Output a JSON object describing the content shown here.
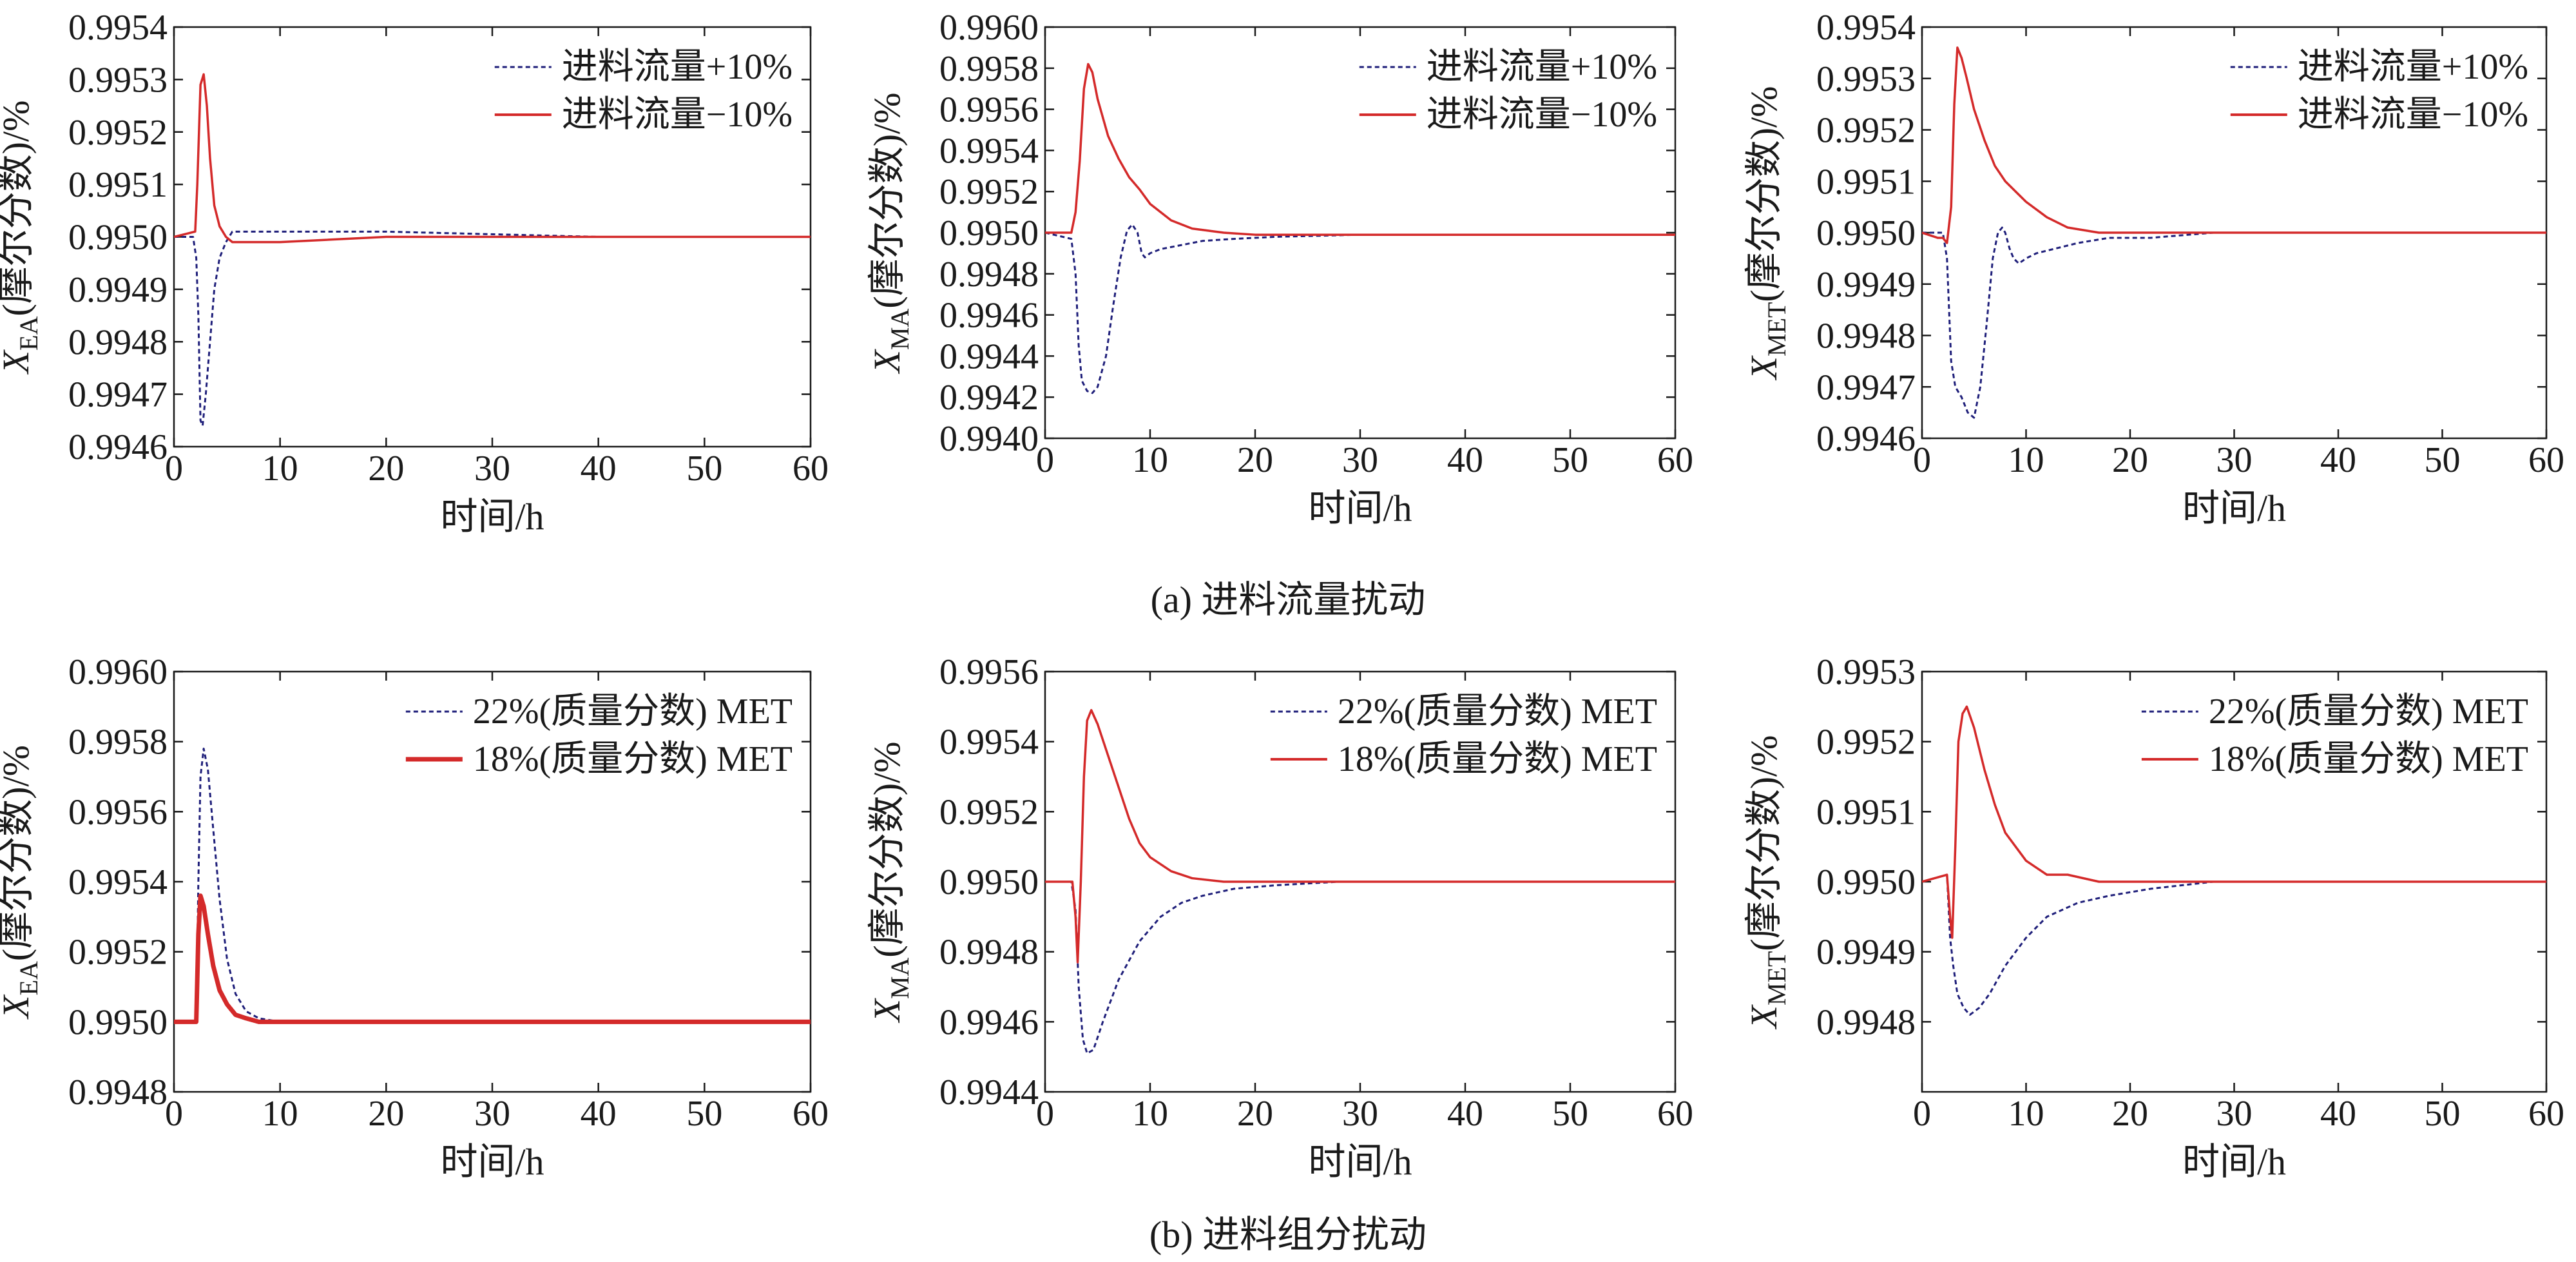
{
  "figure": {
    "captions": [
      "(a) 进料流量扰动",
      "(b) 进料组分扰动"
    ]
  },
  "chart_data": [
    {
      "type": "line",
      "row": "a",
      "ylabel": {
        "prefix": "X",
        "sub": "EA",
        "suffix": "(摩尔分数)/%"
      },
      "xlabel": "时间/h",
      "xlim": [
        0,
        60
      ],
      "ylim": [
        0.9946,
        0.9954
      ],
      "xticks": [
        0,
        10,
        20,
        30,
        40,
        50,
        60
      ],
      "yticks": [
        "0.9946",
        "0.9947",
        "0.9948",
        "0.9949",
        "0.9950",
        "0.9951",
        "0.9952",
        "0.9953",
        "0.9954"
      ],
      "grid": false,
      "legend_position": "top-right",
      "series": [
        {
          "name": "进料流量+10%",
          "style": "dotted",
          "color": "#1f1f7a",
          "x": [
            0,
            1.8,
            2.1,
            2.3,
            2.5,
            2.7,
            3.0,
            3.4,
            3.8,
            4.3,
            4.9,
            5.5,
            7,
            10,
            20,
            40,
            60
          ],
          "y": [
            0.995,
            0.995,
            0.99496,
            0.99485,
            0.99465,
            0.99464,
            0.9947,
            0.9948,
            0.9949,
            0.99496,
            0.99499,
            0.99501,
            0.99501,
            0.99501,
            0.99501,
            0.995,
            0.995
          ]
        },
        {
          "name": "进料流量−10%",
          "style": "solid",
          "color": "#d42a2a",
          "x": [
            0,
            2.0,
            2.2,
            2.5,
            2.8,
            3.1,
            3.4,
            3.8,
            4.3,
            4.9,
            5.5,
            7,
            10,
            20,
            40,
            60
          ],
          "y": [
            0.995,
            0.99501,
            0.9951,
            0.99529,
            0.99531,
            0.99525,
            0.99515,
            0.99506,
            0.99502,
            0.995,
            0.99499,
            0.99499,
            0.99499,
            0.995,
            0.995,
            0.995
          ]
        }
      ]
    },
    {
      "type": "line",
      "row": "a",
      "ylabel": {
        "prefix": "X",
        "sub": "MA",
        "suffix": "(摩尔分数)/%"
      },
      "xlabel": "时间/h",
      "xlim": [
        0,
        60
      ],
      "ylim": [
        0.994,
        0.996
      ],
      "xticks": [
        0,
        10,
        20,
        30,
        40,
        50,
        60
      ],
      "yticks": [
        "0.9940",
        "0.9942",
        "0.9944",
        "0.9946",
        "0.9948",
        "0.9950",
        "0.9952",
        "0.9954",
        "0.9956",
        "0.9958",
        "0.9960"
      ],
      "grid": false,
      "legend_position": "top-right",
      "series": [
        {
          "name": "进料流量+10%",
          "style": "dotted",
          "color": "#1f1f7a",
          "x": [
            0,
            2.5,
            2.9,
            3.2,
            3.5,
            4.0,
            4.5,
            5,
            5.8,
            6.5,
            7.2,
            7.8,
            8.3,
            8.8,
            9.2,
            9.5,
            10,
            11,
            13,
            15,
            18,
            22,
            30,
            45,
            60
          ],
          "y": [
            0.995,
            0.99497,
            0.9948,
            0.99445,
            0.99428,
            0.99423,
            0.99422,
            0.99425,
            0.9944,
            0.99465,
            0.99488,
            0.99501,
            0.99504,
            0.995,
            0.9949,
            0.99488,
            0.9949,
            0.99492,
            0.99494,
            0.99496,
            0.99497,
            0.99498,
            0.99499,
            0.99499,
            0.99499
          ]
        },
        {
          "name": "进料流量−10%",
          "style": "solid",
          "color": "#d42a2a",
          "x": [
            0,
            2.5,
            2.9,
            3.3,
            3.7,
            4.1,
            4.5,
            5.0,
            6.0,
            7.0,
            8.0,
            9.0,
            10,
            12,
            14,
            17,
            20,
            30,
            45,
            60
          ],
          "y": [
            0.995,
            0.995,
            0.9951,
            0.99535,
            0.9957,
            0.99582,
            0.99578,
            0.99565,
            0.99547,
            0.99536,
            0.99527,
            0.99521,
            0.99514,
            0.99506,
            0.99502,
            0.995,
            0.99499,
            0.99499,
            0.99499,
            0.99499
          ]
        }
      ]
    },
    {
      "type": "line",
      "row": "a",
      "ylabel": {
        "prefix": "X",
        "sub": "MET",
        "suffix": "(摩尔分数)/%"
      },
      "xlabel": "时间/h",
      "xlim": [
        0,
        60
      ],
      "ylim": [
        0.9946,
        0.9954
      ],
      "xticks": [
        0,
        10,
        20,
        30,
        40,
        50,
        60
      ],
      "yticks": [
        "0.9946",
        "0.9947",
        "0.9948",
        "0.9949",
        "0.9950",
        "0.9951",
        "0.9952",
        "0.9953",
        "0.9954"
      ],
      "grid": false,
      "legend_position": "top-right",
      "series": [
        {
          "name": "进料流量+10%",
          "style": "dotted",
          "color": "#1f1f7a",
          "x": [
            0,
            2.0,
            2.4,
            2.8,
            3.2,
            3.8,
            4.4,
            5.0,
            5.6,
            6.2,
            6.8,
            7.3,
            7.7,
            8.0,
            8.4,
            8.8,
            9.3,
            10,
            11,
            13,
            15,
            18,
            22,
            28,
            35,
            60
          ],
          "y": [
            0.995,
            0.995,
            0.99495,
            0.99475,
            0.9947,
            0.99468,
            0.99465,
            0.99464,
            0.9947,
            0.99482,
            0.99495,
            0.995,
            0.99501,
            0.995,
            0.99497,
            0.99495,
            0.99494,
            0.99495,
            0.99496,
            0.99497,
            0.99498,
            0.99499,
            0.99499,
            0.995,
            0.995,
            0.995
          ]
        },
        {
          "name": "进料流量−10%",
          "style": "solid",
          "color": "#d42a2a",
          "x": [
            0,
            1.5,
            2.0,
            2.4,
            2.8,
            3.1,
            3.4,
            3.8,
            4.3,
            5.0,
            6.0,
            7.0,
            8.0,
            9.0,
            10,
            12,
            14,
            17,
            20,
            25,
            35,
            60
          ],
          "y": [
            0.995,
            0.99499,
            0.99499,
            0.99498,
            0.99505,
            0.99525,
            0.99536,
            0.99534,
            0.9953,
            0.99524,
            0.99518,
            0.99513,
            0.9951,
            0.99508,
            0.99506,
            0.99503,
            0.99501,
            0.995,
            0.995,
            0.995,
            0.995,
            0.995
          ]
        }
      ]
    },
    {
      "type": "line",
      "row": "b",
      "ylabel": {
        "prefix": "X",
        "sub": "EA",
        "suffix": "(摩尔分数)/%"
      },
      "xlabel": "时间/h",
      "xlim": [
        0,
        60
      ],
      "ylim": [
        0.9948,
        0.996
      ],
      "xticks": [
        0,
        10,
        20,
        30,
        40,
        50,
        60
      ],
      "yticks": [
        "0.9948",
        "0.9950",
        "0.9952",
        "0.9954",
        "0.9956",
        "0.9958",
        "0.9960"
      ],
      "grid": false,
      "legend_position": "top-right",
      "series": [
        {
          "name": "22%(质量分数) MET",
          "style": "dotted",
          "color": "#1f1f7a",
          "x": [
            0,
            2.1,
            2.3,
            2.5,
            2.8,
            3.2,
            3.7,
            4.3,
            5.0,
            5.8,
            6.8,
            8,
            10,
            20,
            40,
            60
          ],
          "y": [
            0.995,
            0.995,
            0.9954,
            0.9957,
            0.99578,
            0.99572,
            0.99555,
            0.99535,
            0.99518,
            0.99508,
            0.99503,
            0.99501,
            0.995,
            0.995,
            0.995,
            0.995
          ]
        },
        {
          "name": "18%(质量分数) MET",
          "style": "solid-thick",
          "color": "#d42a2a",
          "x": [
            0,
            2.1,
            2.3,
            2.5,
            2.8,
            3.2,
            3.7,
            4.3,
            5.0,
            5.8,
            6.8,
            8,
            10,
            20,
            40,
            60
          ],
          "y": [
            0.995,
            0.995,
            0.99525,
            0.99536,
            0.99533,
            0.99525,
            0.99516,
            0.99509,
            0.99505,
            0.99502,
            0.99501,
            0.995,
            0.995,
            0.995,
            0.995,
            0.995
          ]
        }
      ]
    },
    {
      "type": "line",
      "row": "b",
      "ylabel": {
        "prefix": "X",
        "sub": "MA",
        "suffix": "(摩尔分数)/%"
      },
      "xlabel": "时间/h",
      "xlim": [
        0,
        60
      ],
      "ylim": [
        0.9944,
        0.9956
      ],
      "xticks": [
        0,
        10,
        20,
        30,
        40,
        50,
        60
      ],
      "yticks": [
        "0.9944",
        "0.9946",
        "0.9948",
        "0.9950",
        "0.9952",
        "0.9954",
        "0.9956"
      ],
      "grid": false,
      "legend_position": "top-right",
      "series": [
        {
          "name": "22%(质量分数) MET",
          "style": "dotted",
          "color": "#1f1f7a",
          "x": [
            0,
            2.5,
            2.9,
            3.2,
            3.6,
            4.0,
            4.6,
            5.5,
            7,
            9,
            11,
            13,
            15,
            18,
            22,
            28,
            35,
            45,
            60
          ],
          "y": [
            0.995,
            0.995,
            0.99492,
            0.9947,
            0.99455,
            0.99451,
            0.99452,
            0.9946,
            0.99472,
            0.99483,
            0.9949,
            0.99494,
            0.99496,
            0.99498,
            0.99499,
            0.995,
            0.995,
            0.995,
            0.995
          ]
        },
        {
          "name": "18%(质量分数) MET",
          "style": "solid",
          "color": "#d42a2a",
          "x": [
            0,
            2.6,
            2.9,
            3.1,
            3.4,
            3.7,
            4.0,
            4.4,
            5.0,
            6.0,
            7.0,
            8.0,
            9.0,
            10,
            12,
            14,
            17,
            20,
            30,
            45,
            60
          ],
          "y": [
            0.995,
            0.995,
            0.9949,
            0.99477,
            0.995,
            0.9953,
            0.99546,
            0.99549,
            0.99545,
            0.99536,
            0.99527,
            0.99518,
            0.99511,
            0.99507,
            0.99503,
            0.99501,
            0.995,
            0.995,
            0.995,
            0.995,
            0.995
          ]
        }
      ]
    },
    {
      "type": "line",
      "row": "b",
      "ylabel": {
        "prefix": "X",
        "sub": "MET",
        "suffix": "(摩尔分数)/%"
      },
      "xlabel": "时间/h",
      "xlim": [
        0,
        60
      ],
      "ylim": [
        0.9947,
        0.9953
      ],
      "xticks": [
        0,
        10,
        20,
        30,
        40,
        50,
        60
      ],
      "yticks": [
        "0.9948",
        "0.9949",
        "0.9950",
        "0.9951",
        "0.9952",
        "0.9953"
      ],
      "grid": false,
      "legend_position": "top-right",
      "series": [
        {
          "name": "22%(质量分数)  MET",
          "style": "dotted",
          "color": "#1f1f7a",
          "x": [
            0,
            2.4,
            2.7,
            3.0,
            3.4,
            4.0,
            4.6,
            5.5,
            6.5,
            8,
            10,
            12,
            15,
            18,
            22,
            28,
            35,
            45,
            60
          ],
          "y": [
            0.995,
            0.99501,
            0.99492,
            0.99488,
            0.99484,
            0.99482,
            0.99481,
            0.99482,
            0.99484,
            0.99488,
            0.99492,
            0.99495,
            0.99497,
            0.99498,
            0.99499,
            0.995,
            0.995,
            0.995,
            0.995
          ]
        },
        {
          "name": "18%(质量分数)  MET",
          "style": "solid",
          "color": "#d42a2a",
          "x": [
            0,
            2.4,
            2.7,
            2.9,
            3.2,
            3.5,
            3.9,
            4.3,
            5.0,
            6.0,
            7.0,
            8.0,
            9.0,
            10,
            11,
            12,
            14,
            17,
            20,
            30,
            45,
            60
          ],
          "y": [
            0.995,
            0.99501,
            0.99495,
            0.99492,
            0.99505,
            0.9952,
            0.99524,
            0.99525,
            0.99522,
            0.99516,
            0.99511,
            0.99507,
            0.99505,
            0.99503,
            0.99502,
            0.99501,
            0.99501,
            0.995,
            0.995,
            0.995,
            0.995,
            0.995
          ]
        }
      ]
    }
  ]
}
